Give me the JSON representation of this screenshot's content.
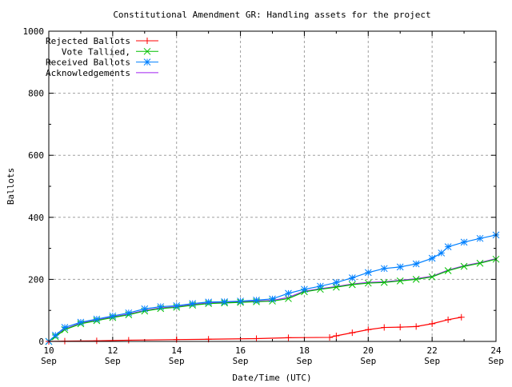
{
  "chart_data": {
    "type": "line",
    "title": "Constitutional Amendment GR: Handling assets for the project",
    "xlabel": "Date/Time (UTC)",
    "ylabel": "Ballots",
    "xlim": [
      "09-10",
      "09-24"
    ],
    "ylim": [
      0,
      1000
    ],
    "grid": true,
    "legend_position": "top-left",
    "x_ticks": [
      {
        "day": "10",
        "month": "Sep"
      },
      {
        "day": "12",
        "month": "Sep"
      },
      {
        "day": "14",
        "month": "Sep"
      },
      {
        "day": "16",
        "month": "Sep"
      },
      {
        "day": "18",
        "month": "Sep"
      },
      {
        "day": "20",
        "month": "Sep"
      },
      {
        "day": "22",
        "month": "Sep"
      },
      {
        "day": "24",
        "month": "Sep"
      }
    ],
    "y_ticks": [
      "0",
      "200",
      "400",
      "600",
      "800",
      "1000"
    ],
    "series": [
      {
        "name": "Rejected Ballots",
        "color": "#ff0000",
        "marker": "plus",
        "x": [
          "09-10 00:00",
          "09-10 12:00",
          "09-11 12:00",
          "09-12 12:00",
          "09-14 00:00",
          "09-15 00:00",
          "09-16 12:00",
          "09-17 12:00",
          "09-18 19:00",
          "09-19 00:00",
          "09-19 12:00",
          "09-20 00:00",
          "09-20 12:00",
          "09-21 00:00",
          "09-21 12:00",
          "09-22 00:00",
          "09-22 12:00",
          "09-22 22:00"
        ],
        "y": [
          0,
          1,
          2,
          4,
          6,
          7,
          9,
          12,
          13,
          18,
          28,
          38,
          45,
          46,
          48,
          57,
          70,
          78
        ]
      },
      {
        "name": "Vote Tallied,",
        "color": "#00c000",
        "marker": "x",
        "x": [
          "09-10 00:00",
          "09-10 05:00",
          "09-10 12:00",
          "09-11 00:00",
          "09-11 12:00",
          "09-12 00:00",
          "09-12 12:00",
          "09-13 00:00",
          "09-13 12:00",
          "09-14 00:00",
          "09-14 12:00",
          "09-15 00:00",
          "09-15 12:00",
          "09-16 00:00",
          "09-16 12:00",
          "09-17 00:00",
          "09-17 12:00",
          "09-18 00:00",
          "09-18 12:00",
          "09-19 00:00",
          "09-19 12:00",
          "09-20 00:00",
          "09-20 12:00",
          "09-21 00:00",
          "09-21 12:00",
          "09-22 00:00",
          "09-22 12:00",
          "09-23 00:00",
          "09-23 12:00",
          "09-24 00:00"
        ],
        "y": [
          0,
          15,
          38,
          57,
          67,
          77,
          86,
          98,
          106,
          110,
          117,
          122,
          124,
          126,
          128,
          130,
          138,
          160,
          168,
          175,
          183,
          188,
          190,
          195,
          200,
          208,
          228,
          242,
          252,
          265
        ]
      },
      {
        "name": "Received Ballots",
        "color": "#0080ff",
        "marker": "star",
        "x": [
          "09-10 00:00",
          "09-10 05:00",
          "09-10 12:00",
          "09-11 00:00",
          "09-11 12:00",
          "09-12 00:00",
          "09-12 12:00",
          "09-13 00:00",
          "09-13 12:00",
          "09-14 00:00",
          "09-14 12:00",
          "09-15 00:00",
          "09-15 12:00",
          "09-16 00:00",
          "09-16 12:00",
          "09-17 00:00",
          "09-17 12:00",
          "09-18 00:00",
          "09-18 12:00",
          "09-19 00:00",
          "09-19 12:00",
          "09-20 00:00",
          "09-20 12:00",
          "09-21 00:00",
          "09-21 12:00",
          "09-22 00:00",
          "09-22 07:00",
          "09-22 12:00",
          "09-23 00:00",
          "09-23 12:00",
          "09-24 00:00"
        ],
        "y": [
          0,
          20,
          45,
          62,
          72,
          82,
          92,
          105,
          112,
          115,
          122,
          127,
          128,
          130,
          133,
          137,
          155,
          168,
          178,
          190,
          205,
          222,
          235,
          240,
          250,
          268,
          285,
          305,
          320,
          332,
          343
        ]
      },
      {
        "name": "Acknowledgements",
        "color": "#a020f0",
        "marker": "none",
        "x": [
          "09-10 00:00",
          "09-10 05:00",
          "09-10 12:00",
          "09-11 00:00",
          "09-11 12:00",
          "09-12 00:00",
          "09-12 12:00",
          "09-13 00:00",
          "09-13 12:00",
          "09-14 00:00",
          "09-14 12:00",
          "09-15 00:00",
          "09-15 12:00",
          "09-16 00:00",
          "09-16 12:00",
          "09-17 00:00",
          "09-17 12:00",
          "09-18 00:00",
          "09-18 12:00",
          "09-19 00:00",
          "09-19 12:00",
          "09-20 00:00",
          "09-20 12:00",
          "09-21 00:00",
          "09-21 12:00",
          "09-22 00:00",
          "09-22 12:00",
          "09-23 00:00",
          "09-23 12:00",
          "09-24 00:00"
        ],
        "y": [
          0,
          17,
          40,
          59,
          69,
          79,
          88,
          100,
          108,
          112,
          119,
          124,
          126,
          128,
          130,
          132,
          142,
          162,
          170,
          177,
          185,
          190,
          192,
          197,
          202,
          210,
          230,
          244,
          254,
          267
        ]
      }
    ]
  }
}
